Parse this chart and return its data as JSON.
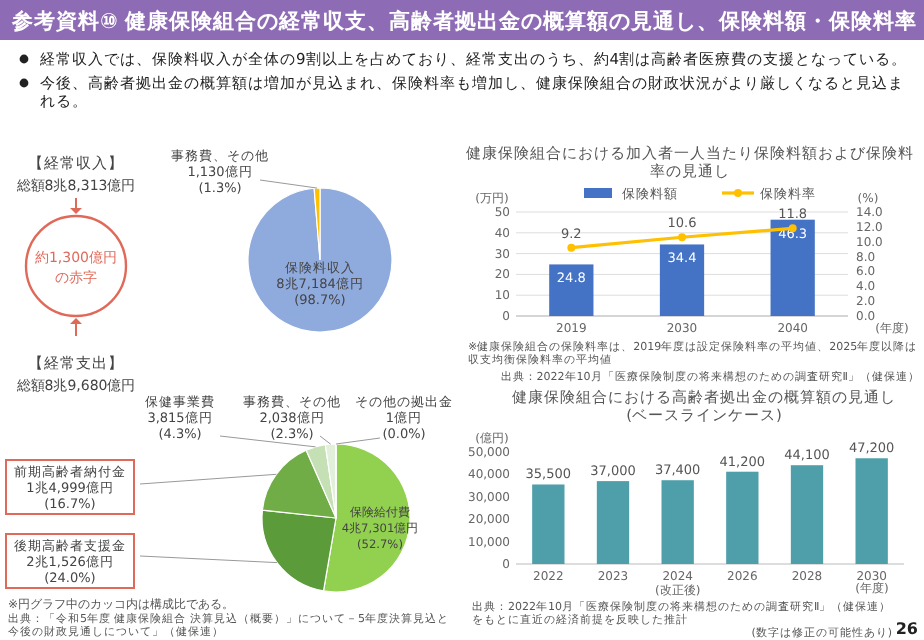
{
  "chart_data": [
    {
      "type": "other",
      "title": "参考資料⑩ 健康保険組合の経常収支、高齢者拠出金の概算額の見通し、保険料額・保険料率",
      "annotations": [
        "経常収入では、保険料収入が全体の9割以上を占めており、経常支出のうち、約4割は高齢者医療費の支援となっている。",
        "今後、高齢者拠出金の概算額は増加が見込まれ、保険料率も増加し、健康保険組合の財政状況がより厳しくなると見込まれる。",
        "26"
      ]
    },
    {
      "type": "pie",
      "title": "【経常収入】",
      "subtitle": "総額8兆8,313億円",
      "categories": [
        "保険料収入",
        "事務費、その他"
      ],
      "values": [
        98.7,
        1.3
      ],
      "colors": [
        "#8faadc",
        "#ffc000"
      ],
      "value_labels": [
        "8兆7,184億円\n(98.7%)",
        "1,130億円\n(1.3%)"
      ],
      "annotations": [
        "約1,300億円の赤字"
      ]
    },
    {
      "type": "pie",
      "title": "【経常支出】",
      "subtitle": "総額8兆9,680億円",
      "categories": [
        "保険給付費",
        "後期高齢者支援金",
        "前期高齢者納付金",
        "保健事業費",
        "事務費、その他",
        "その他の拠出金"
      ],
      "values": [
        52.7,
        24.0,
        16.7,
        4.3,
        2.3,
        0.0
      ],
      "colors": [
        "#92d050",
        "#5b9b3a",
        "#70ad47",
        "#c5e0b4",
        "#e2efda",
        "#f2f8ee"
      ],
      "value_labels": [
        "4兆7,301億円\n(52.7%)",
        "2兆1,526億円\n(24.0%)",
        "1兆4,999億円\n(16.7%)",
        "3,815億円\n(4.3%)",
        "2,038億円\n(2.3%)",
        "1億円\n(0.0%)"
      ],
      "annotations": [
        "※円グラフ中のカッコ内は構成比である。",
        "出典：「令和5年度 健康保険組合 決算見込（概要）」について－5年度決算見込と今後の財政見通しについて」（健保連）"
      ]
    },
    {
      "type": "bar",
      "title": "健康保険組合における加入者一人当たり保険料額および保険料率の見通し",
      "categories": [
        "2019",
        "2030",
        "2040"
      ],
      "series": [
        {
          "name": "保険料額",
          "color": "#4472c4",
          "values": [
            24.8,
            34.4,
            46.3
          ]
        },
        {
          "name": "保険料率",
          "type": "line",
          "axis": "y2",
          "color": "#ffc000",
          "values": [
            9.2,
            10.6,
            11.8
          ]
        }
      ],
      "ylabel": "(万円)",
      "y2label": "(%)",
      "xlabel": "(年度)",
      "ylim": [
        0,
        50
      ],
      "yticks": [
        0,
        10,
        20,
        30,
        40,
        50
      ],
      "y2lim": [
        0,
        14
      ],
      "y2ticks": [
        {
          "value": 0,
          "label": "0.0"
        },
        {
          "value": 2,
          "label": "2.0"
        },
        {
          "value": 4,
          "label": "4.0"
        },
        {
          "value": 6,
          "label": "6.0"
        },
        {
          "value": 8,
          "label": "8.0"
        },
        {
          "value": 10,
          "label": "10.0"
        },
        {
          "value": 12,
          "label": "12.0"
        },
        {
          "value": 14,
          "label": "14.0"
        }
      ],
      "data_labels": true,
      "legend": "top",
      "grid": "y",
      "marker": "circle",
      "annotations": [
        "※健康保険組合の保険料率は、2019年度は設定保険料率の平均値、2025年度以降は収支均衡保険料率の平均値",
        "出典：2022年10月「医療保険制度の将来構想のための調査研究Ⅱ」（健保連）"
      ]
    },
    {
      "type": "bar",
      "title": "健康保険組合における高齢者拠出金の概算額の見通し",
      "subtitle": "(ベースラインケース)",
      "categories": [
        "2022",
        "2023",
        "2024\n(改正後)",
        "2026",
        "2028",
        "2030"
      ],
      "values": [
        35500,
        37000,
        37400,
        41200,
        44100,
        47200
      ],
      "color": "#4e9fa9",
      "xlabel": "(年度)",
      "ylabel": "(億円)",
      "ylim": [
        0,
        50000
      ],
      "yticks": [
        {
          "value": 0,
          "label": "0"
        },
        {
          "value": 10000,
          "label": "10,000"
        },
        {
          "value": 20000,
          "label": "20,000"
        },
        {
          "value": 30000,
          "label": "30,000"
        },
        {
          "value": 40000,
          "label": "40,000"
        },
        {
          "value": 50000,
          "label": "50,000"
        }
      ],
      "value_labels": [
        "35,500",
        "37,000",
        "37,400",
        "41,200",
        "44,100",
        "47,200"
      ],
      "annotations": [
        "出典：2022年10月「医療保険制度の将来構想のための調査研究Ⅱ」（健保連）をもとに直近の経済前提を反映した推計",
        "(数字は修正の可能性あり)"
      ]
    }
  ]
}
